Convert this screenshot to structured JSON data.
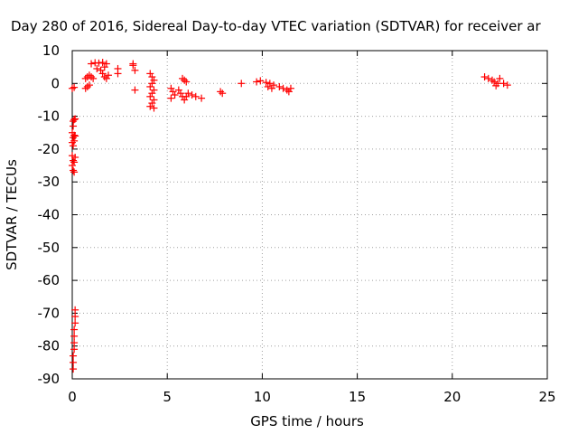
{
  "chart_data": {
    "type": "scatter",
    "title": "Day 280 of 2016, Sidereal Day-to-day VTEC variation (SDTVAR) for receiver ar",
    "xlabel": "GPS time / hours",
    "ylabel": "SDTVAR / TECUs",
    "xlim": [
      0,
      25
    ],
    "ylim": [
      -90,
      10
    ],
    "x_ticks": [
      0,
      5,
      10,
      15,
      20,
      25
    ],
    "y_ticks": [
      10,
      0,
      -10,
      -20,
      -30,
      -40,
      -50,
      -60,
      -70,
      -80,
      -90
    ],
    "grid": true,
    "marker": "+",
    "color": "#ff0000",
    "series": [
      {
        "name": "SDTVAR",
        "points": [
          [
            0.0,
            -1.5
          ],
          [
            0.1,
            -1.2
          ],
          [
            0.05,
            -11.5
          ],
          [
            0.1,
            -11
          ],
          [
            0.15,
            -10.8
          ],
          [
            0.05,
            -13
          ],
          [
            0.0,
            -15
          ],
          [
            0.05,
            -16.5
          ],
          [
            0.1,
            -15.8
          ],
          [
            0.0,
            -18
          ],
          [
            0.05,
            -19
          ],
          [
            0.1,
            -17.5
          ],
          [
            0.15,
            -16
          ],
          [
            0.0,
            -22
          ],
          [
            0.05,
            -23.5
          ],
          [
            0.0,
            -25
          ],
          [
            0.05,
            -26.5
          ],
          [
            0.1,
            -27
          ],
          [
            0.1,
            -24
          ],
          [
            0.15,
            -22.5
          ],
          [
            0.15,
            -69
          ],
          [
            0.15,
            -71
          ],
          [
            0.15,
            -73
          ],
          [
            0.1,
            -75
          ],
          [
            0.1,
            -77
          ],
          [
            0.1,
            -79
          ],
          [
            0.1,
            -81
          ],
          [
            0.05,
            -83
          ],
          [
            0.05,
            -85
          ],
          [
            0.05,
            -87
          ],
          [
            0.7,
            -1.5
          ],
          [
            0.8,
            -1.0
          ],
          [
            0.9,
            -0.5
          ],
          [
            0.7,
            1.5
          ],
          [
            0.8,
            2
          ],
          [
            0.9,
            2.5
          ],
          [
            1.0,
            2
          ],
          [
            1.1,
            1.5
          ],
          [
            1.0,
            6
          ],
          [
            1.2,
            6.3
          ],
          [
            1.4,
            6.2
          ],
          [
            1.6,
            6.4
          ],
          [
            1.8,
            6
          ],
          [
            1.3,
            4.5
          ],
          [
            1.5,
            4
          ],
          [
            1.6,
            3
          ],
          [
            1.7,
            2
          ],
          [
            1.8,
            1.5
          ],
          [
            1.9,
            2.5
          ],
          [
            1.7,
            5
          ],
          [
            2.4,
            3
          ],
          [
            2.4,
            4.5
          ],
          [
            3.2,
            5.5
          ],
          [
            3.3,
            4
          ],
          [
            3.2,
            6
          ],
          [
            3.3,
            -2
          ],
          [
            4.1,
            3
          ],
          [
            4.2,
            2
          ],
          [
            4.3,
            1
          ],
          [
            4.2,
            0
          ],
          [
            4.1,
            -1
          ],
          [
            4.3,
            -2
          ],
          [
            4.2,
            -3
          ],
          [
            4.1,
            -4
          ],
          [
            4.3,
            -5
          ],
          [
            4.2,
            -6
          ],
          [
            4.1,
            -7
          ],
          [
            4.3,
            -7.5
          ],
          [
            5.2,
            -1.5
          ],
          [
            5.3,
            -2.5
          ],
          [
            5.4,
            -3.5
          ],
          [
            5.2,
            -4.5
          ],
          [
            5.6,
            -2
          ],
          [
            5.7,
            -3
          ],
          [
            5.8,
            -4
          ],
          [
            5.9,
            -5
          ],
          [
            6.0,
            -4
          ],
          [
            6.1,
            -3
          ],
          [
            5.8,
            1.5
          ],
          [
            5.9,
            1
          ],
          [
            6.0,
            0.5
          ],
          [
            6.3,
            -3.5
          ],
          [
            6.5,
            -4
          ],
          [
            6.8,
            -4.5
          ],
          [
            7.8,
            -2.5
          ],
          [
            7.9,
            -3
          ],
          [
            8.9,
            0
          ],
          [
            9.7,
            0.5
          ],
          [
            9.9,
            0.8
          ],
          [
            10.2,
            0.3
          ],
          [
            10.4,
            0
          ],
          [
            10.6,
            -0.5
          ],
          [
            10.3,
            -1
          ],
          [
            10.5,
            -1.5
          ],
          [
            10.9,
            -1
          ],
          [
            11.1,
            -1.5
          ],
          [
            11.3,
            -2
          ],
          [
            11.4,
            -2.5
          ],
          [
            11.5,
            -1.5
          ],
          [
            21.7,
            2
          ],
          [
            21.9,
            1.5
          ],
          [
            22.1,
            1
          ],
          [
            22.2,
            0.5
          ],
          [
            22.4,
            0
          ],
          [
            22.5,
            1.5
          ],
          [
            22.7,
            0
          ],
          [
            22.9,
            -0.5
          ],
          [
            22.3,
            -0.7
          ]
        ]
      }
    ]
  }
}
